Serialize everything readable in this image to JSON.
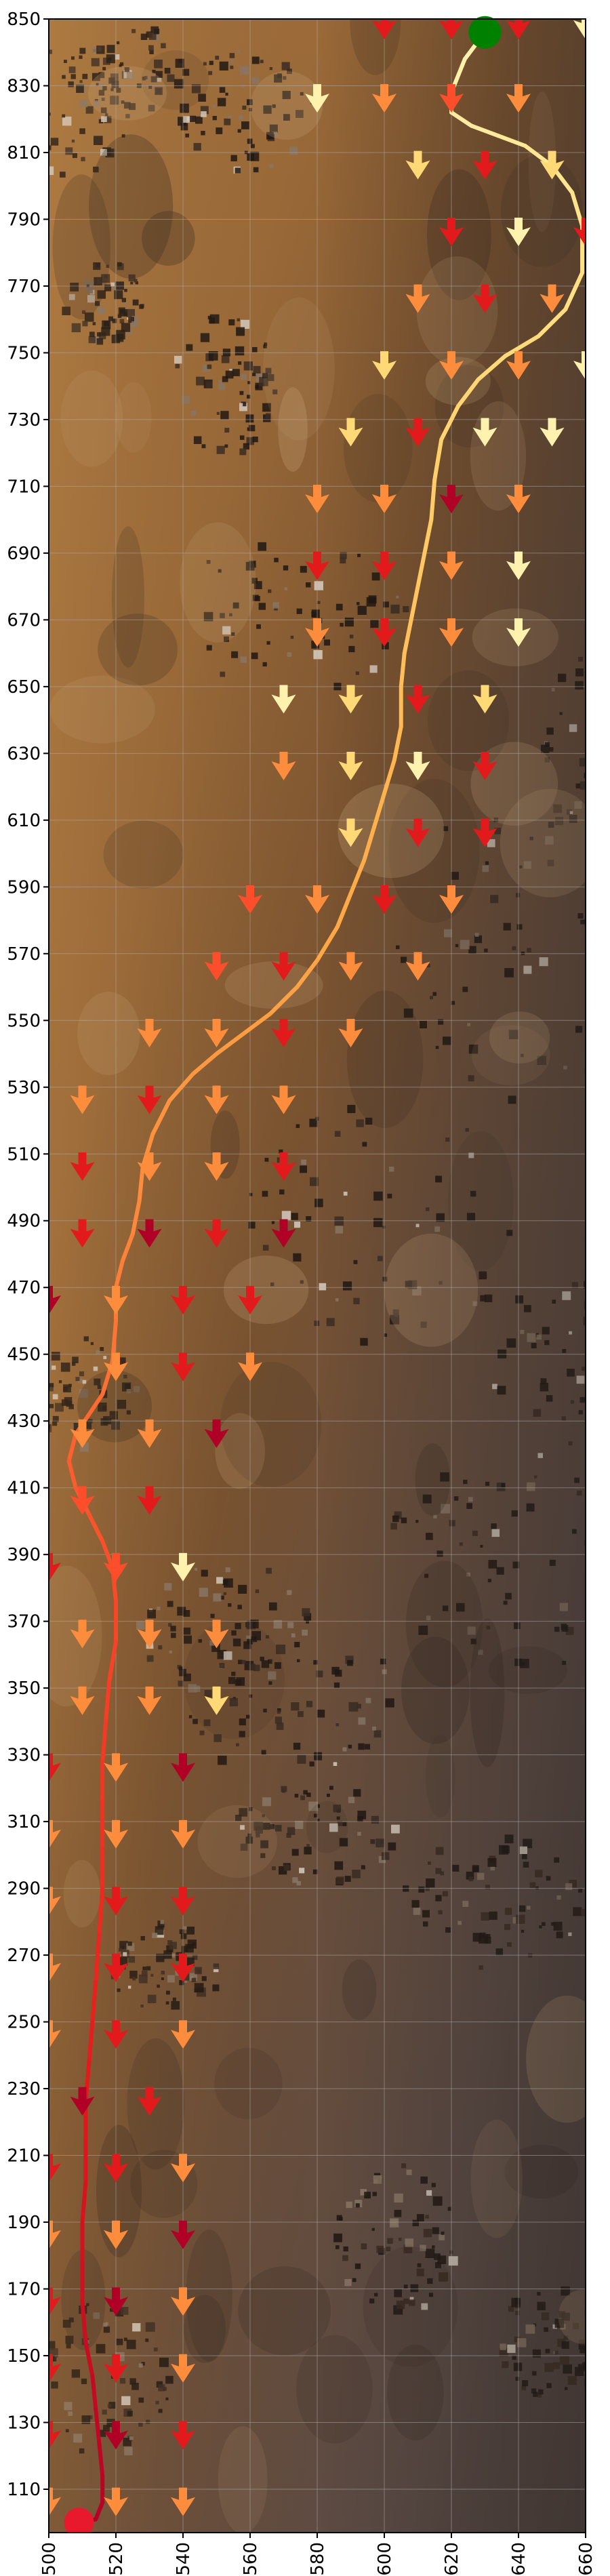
{
  "chart_data": {
    "type": "scatter",
    "title": "",
    "xlabel": "",
    "ylabel": "",
    "xlim": [
      500,
      660
    ],
    "ylim": [
      97,
      850
    ],
    "x_ticks": [
      500,
      520,
      540,
      560,
      580,
      600,
      620,
      640,
      660
    ],
    "y_ticks": [
      110,
      130,
      150,
      170,
      190,
      210,
      230,
      250,
      270,
      290,
      310,
      330,
      350,
      370,
      390,
      410,
      430,
      450,
      470,
      490,
      510,
      530,
      550,
      570,
      590,
      610,
      630,
      650,
      670,
      690,
      710,
      730,
      750,
      770,
      790,
      810,
      830,
      850
    ],
    "grid": true,
    "background": "terrain imagery (Mars-like surface, brown/orange with dark rock patches)",
    "start_marker": {
      "x": 630,
      "y": 846,
      "color": "#008000"
    },
    "end_marker": {
      "x": 509,
      "y": 100,
      "color": "#e8192c"
    },
    "path_color_gradient": [
      "#fff2ae",
      "#fed976",
      "#feb24c",
      "#fd8d3c",
      "#fc4e2a",
      "#e31a1c",
      "#b10026"
    ],
    "path": [
      [
        630,
        846
      ],
      [
        624,
        838
      ],
      [
        620,
        828
      ],
      [
        620,
        822
      ],
      [
        626,
        818
      ],
      [
        634,
        815
      ],
      [
        642,
        812
      ],
      [
        650,
        806
      ],
      [
        656,
        798
      ],
      [
        659,
        788
      ],
      [
        659,
        774
      ],
      [
        654,
        763
      ],
      [
        646,
        755
      ],
      [
        636,
        749
      ],
      [
        628,
        742
      ],
      [
        622,
        734
      ],
      [
        617,
        724
      ],
      [
        615,
        712
      ],
      [
        614,
        700
      ],
      [
        612,
        690
      ],
      [
        610,
        680
      ],
      [
        608,
        670
      ],
      [
        606,
        660
      ],
      [
        605,
        650
      ],
      [
        605,
        638
      ],
      [
        603,
        628
      ],
      [
        600,
        618
      ],
      [
        597,
        608
      ],
      [
        594,
        598
      ],
      [
        590,
        588
      ],
      [
        586,
        578
      ],
      [
        580,
        568
      ],
      [
        574,
        560
      ],
      [
        566,
        552
      ],
      [
        558,
        546
      ],
      [
        550,
        540
      ],
      [
        543,
        534
      ],
      [
        536,
        526
      ],
      [
        531,
        516
      ],
      [
        528,
        506
      ],
      [
        527,
        496
      ],
      [
        525,
        486
      ],
      [
        522,
        478
      ],
      [
        520,
        470
      ],
      [
        520,
        460
      ],
      [
        519,
        448
      ],
      [
        516,
        438
      ],
      [
        512,
        432
      ],
      [
        508,
        426
      ],
      [
        506,
        418
      ],
      [
        508,
        410
      ],
      [
        512,
        402
      ],
      [
        516,
        394
      ],
      [
        519,
        386
      ],
      [
        520,
        376
      ],
      [
        520,
        364
      ],
      [
        518,
        352
      ],
      [
        517,
        340
      ],
      [
        516,
        328
      ],
      [
        516,
        316
      ],
      [
        516,
        302
      ],
      [
        516,
        290
      ],
      [
        515,
        276
      ],
      [
        514,
        262
      ],
      [
        513,
        250
      ],
      [
        512,
        238
      ],
      [
        511,
        226
      ],
      [
        511,
        214
      ],
      [
        511,
        202
      ],
      [
        510,
        190
      ],
      [
        510,
        178
      ],
      [
        510,
        166
      ],
      [
        511,
        154
      ],
      [
        513,
        144
      ],
      [
        514,
        134
      ],
      [
        515,
        124
      ],
      [
        516,
        114
      ],
      [
        516,
        106
      ],
      [
        514,
        101
      ],
      [
        509,
        100
      ]
    ],
    "arrows": [
      [
        600,
        848,
        "#e31a1c"
      ],
      [
        620,
        848,
        "#e31a1c"
      ],
      [
        640,
        848,
        "#e31a1c"
      ],
      [
        660,
        848,
        "#fff2ae"
      ],
      [
        580,
        826,
        "#fff2ae"
      ],
      [
        600,
        826,
        "#fd8d3c"
      ],
      [
        620,
        826,
        "#fc4e2a"
      ],
      [
        640,
        826,
        "#fd8d3c"
      ],
      [
        610,
        806,
        "#fed976"
      ],
      [
        630,
        806,
        "#e31a1c"
      ],
      [
        650,
        806,
        "#fed976"
      ],
      [
        620,
        786,
        "#e31a1c"
      ],
      [
        640,
        786,
        "#fff2ae"
      ],
      [
        660,
        786,
        "#e31a1c"
      ],
      [
        610,
        766,
        "#fd8d3c"
      ],
      [
        630,
        766,
        "#e31a1c"
      ],
      [
        650,
        766,
        "#fd8d3c"
      ],
      [
        600,
        746,
        "#fed976"
      ],
      [
        620,
        746,
        "#fd8d3c"
      ],
      [
        640,
        746,
        "#fd8d3c"
      ],
      [
        660,
        746,
        "#fff2ae"
      ],
      [
        590,
        726,
        "#fed976"
      ],
      [
        610,
        726,
        "#e31a1c"
      ],
      [
        630,
        726,
        "#fff2ae"
      ],
      [
        650,
        726,
        "#fff2ae"
      ],
      [
        580,
        706,
        "#fd8d3c"
      ],
      [
        600,
        706,
        "#fd8d3c"
      ],
      [
        620,
        706,
        "#b10026"
      ],
      [
        640,
        706,
        "#fd8d3c"
      ],
      [
        580,
        686,
        "#e31a1c"
      ],
      [
        600,
        686,
        "#e31a1c"
      ],
      [
        620,
        686,
        "#fd8d3c"
      ],
      [
        640,
        686,
        "#fff2ae"
      ],
      [
        580,
        666,
        "#fd8d3c"
      ],
      [
        600,
        666,
        "#e31a1c"
      ],
      [
        620,
        666,
        "#fd8d3c"
      ],
      [
        640,
        666,
        "#fff2ae"
      ],
      [
        570,
        646,
        "#fff2ae"
      ],
      [
        590,
        646,
        "#fed976"
      ],
      [
        610,
        646,
        "#e31a1c"
      ],
      [
        630,
        646,
        "#fed976"
      ],
      [
        570,
        626,
        "#fd8d3c"
      ],
      [
        590,
        626,
        "#fed976"
      ],
      [
        610,
        626,
        "#fff2ae"
      ],
      [
        630,
        626,
        "#e31a1c"
      ],
      [
        590,
        606,
        "#fed976"
      ],
      [
        610,
        606,
        "#e31a1c"
      ],
      [
        630,
        606,
        "#e31a1c"
      ],
      [
        560,
        586,
        "#fc4e2a"
      ],
      [
        580,
        586,
        "#fd8d3c"
      ],
      [
        600,
        586,
        "#e31a1c"
      ],
      [
        620,
        586,
        "#fd8d3c"
      ],
      [
        550,
        566,
        "#fc4e2a"
      ],
      [
        570,
        566,
        "#e31a1c"
      ],
      [
        590,
        566,
        "#fd8d3c"
      ],
      [
        610,
        566,
        "#fd8d3c"
      ],
      [
        530,
        546,
        "#fd8d3c"
      ],
      [
        550,
        546,
        "#fd8d3c"
      ],
      [
        570,
        546,
        "#e31a1c"
      ],
      [
        590,
        546,
        "#fd8d3c"
      ],
      [
        510,
        526,
        "#fd8d3c"
      ],
      [
        530,
        526,
        "#e31a1c"
      ],
      [
        550,
        526,
        "#fd8d3c"
      ],
      [
        570,
        526,
        "#fd8d3c"
      ],
      [
        510,
        506,
        "#e31a1c"
      ],
      [
        530,
        506,
        "#fd8d3c"
      ],
      [
        550,
        506,
        "#fd8d3c"
      ],
      [
        570,
        506,
        "#e31a1c"
      ],
      [
        510,
        486,
        "#e31a1c"
      ],
      [
        530,
        486,
        "#b10026"
      ],
      [
        550,
        486,
        "#e31a1c"
      ],
      [
        570,
        486,
        "#b10026"
      ],
      [
        500,
        466,
        "#b10026"
      ],
      [
        520,
        466,
        "#fd8d3c"
      ],
      [
        540,
        466,
        "#e31a1c"
      ],
      [
        560,
        466,
        "#e31a1c"
      ],
      [
        520,
        446,
        "#fd8d3c"
      ],
      [
        540,
        446,
        "#e31a1c"
      ],
      [
        560,
        446,
        "#fd8d3c"
      ],
      [
        510,
        426,
        "#fd8d3c"
      ],
      [
        530,
        426,
        "#fd8d3c"
      ],
      [
        550,
        426,
        "#b10026"
      ],
      [
        510,
        406,
        "#fc4e2a"
      ],
      [
        530,
        406,
        "#e31a1c"
      ],
      [
        500,
        386,
        "#e31a1c"
      ],
      [
        520,
        386,
        "#fc4e2a"
      ],
      [
        540,
        386,
        "#fff2ae"
      ],
      [
        510,
        366,
        "#fd8d3c"
      ],
      [
        530,
        366,
        "#fd8d3c"
      ],
      [
        550,
        366,
        "#fd8d3c"
      ],
      [
        510,
        346,
        "#fd8d3c"
      ],
      [
        530,
        346,
        "#fd8d3c"
      ],
      [
        550,
        346,
        "#fed976"
      ],
      [
        500,
        326,
        "#e31a1c"
      ],
      [
        520,
        326,
        "#fd8d3c"
      ],
      [
        540,
        326,
        "#b10026"
      ],
      [
        500,
        306,
        "#fd8d3c"
      ],
      [
        520,
        306,
        "#fd8d3c"
      ],
      [
        540,
        306,
        "#fd8d3c"
      ],
      [
        500,
        286,
        "#fd8d3c"
      ],
      [
        520,
        286,
        "#e31a1c"
      ],
      [
        540,
        286,
        "#e31a1c"
      ],
      [
        500,
        266,
        "#fd8d3c"
      ],
      [
        520,
        266,
        "#e31a1c"
      ],
      [
        540,
        266,
        "#e31a1c"
      ],
      [
        500,
        246,
        "#fd8d3c"
      ],
      [
        520,
        246,
        "#e31a1c"
      ],
      [
        540,
        246,
        "#fd8d3c"
      ],
      [
        510,
        226,
        "#b10026"
      ],
      [
        530,
        226,
        "#e31a1c"
      ],
      [
        500,
        206,
        "#e31a1c"
      ],
      [
        520,
        206,
        "#e31a1c"
      ],
      [
        540,
        206,
        "#fd8d3c"
      ],
      [
        500,
        186,
        "#fd8d3c"
      ],
      [
        520,
        186,
        "#fd8d3c"
      ],
      [
        540,
        186,
        "#b10026"
      ],
      [
        500,
        166,
        "#e31a1c"
      ],
      [
        520,
        166,
        "#b10026"
      ],
      [
        540,
        166,
        "#fd8d3c"
      ],
      [
        500,
        146,
        "#e31a1c"
      ],
      [
        520,
        146,
        "#e31a1c"
      ],
      [
        540,
        146,
        "#fd8d3c"
      ],
      [
        500,
        126,
        "#e31a1c"
      ],
      [
        520,
        126,
        "#b10026"
      ],
      [
        540,
        126,
        "#e31a1c"
      ],
      [
        500,
        106,
        "#fd8d3c"
      ],
      [
        520,
        106,
        "#fd8d3c"
      ],
      [
        540,
        106,
        "#fd8d3c"
      ]
    ]
  }
}
